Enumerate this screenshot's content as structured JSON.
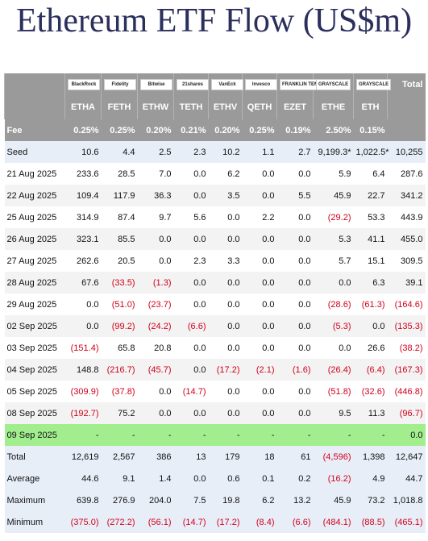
{
  "title": "Ethereum ETF Flow (US$m)",
  "total_header": "Total",
  "fee_label": "Fee",
  "columns": [
    {
      "logo": "BlackRock",
      "ticker": "ETHA",
      "fee": "0.25%"
    },
    {
      "logo": "Fidelity",
      "ticker": "FETH",
      "fee": "0.25%"
    },
    {
      "logo": "Bitwise",
      "ticker": "ETHW",
      "fee": "0.20%"
    },
    {
      "logo": "21shares",
      "ticker": "TETH",
      "fee": "0.21%"
    },
    {
      "logo": "VanEck",
      "ticker": "ETHV",
      "fee": "0.20%"
    },
    {
      "logo": "Invesco",
      "ticker": "QETH",
      "fee": "0.25%"
    },
    {
      "logo": "FRANKLIN TEMPLETON",
      "ticker": "EZET",
      "fee": "0.19%"
    },
    {
      "logo": "GRAYSCALE",
      "ticker": "ETHE",
      "fee": "2.50%"
    },
    {
      "logo": "GRAYSCALE",
      "ticker": "ETH",
      "fee": "0.15%"
    }
  ],
  "rows": [
    {
      "label": "Seed",
      "cells": [
        "10.6",
        "4.4",
        "2.5",
        "2.3",
        "10.2",
        "1.1",
        "2.7",
        "9,199.3*",
        "1,022.5*",
        "10,255"
      ]
    },
    {
      "label": "21 Aug 2025",
      "cells": [
        "233.6",
        "28.5",
        "7.0",
        "0.0",
        "6.2",
        "0.0",
        "0.0",
        "5.9",
        "6.4",
        "287.6"
      ]
    },
    {
      "label": "22 Aug 2025",
      "cells": [
        "109.4",
        "117.9",
        "36.3",
        "0.0",
        "3.5",
        "0.0",
        "5.5",
        "45.9",
        "22.7",
        "341.2"
      ]
    },
    {
      "label": "25 Aug 2025",
      "cells": [
        "314.9",
        "87.4",
        "9.7",
        "5.6",
        "0.0",
        "2.2",
        "0.0",
        "(29.2)",
        "53.3",
        "443.9"
      ]
    },
    {
      "label": "26 Aug 2025",
      "cells": [
        "323.1",
        "85.5",
        "0.0",
        "0.0",
        "0.0",
        "0.0",
        "0.0",
        "5.3",
        "41.1",
        "455.0"
      ]
    },
    {
      "label": "27 Aug 2025",
      "cells": [
        "262.6",
        "20.5",
        "0.0",
        "2.3",
        "3.3",
        "0.0",
        "0.0",
        "5.7",
        "15.1",
        "309.5"
      ]
    },
    {
      "label": "28 Aug 2025",
      "cells": [
        "67.6",
        "(33.5)",
        "(1.3)",
        "0.0",
        "0.0",
        "0.0",
        "0.0",
        "0.0",
        "6.3",
        "39.1"
      ]
    },
    {
      "label": "29 Aug 2025",
      "cells": [
        "0.0",
        "(51.0)",
        "(23.7)",
        "0.0",
        "0.0",
        "0.0",
        "0.0",
        "(28.6)",
        "(61.3)",
        "(164.6)"
      ]
    },
    {
      "label": "02 Sep 2025",
      "cells": [
        "0.0",
        "(99.2)",
        "(24.2)",
        "(6.6)",
        "0.0",
        "0.0",
        "0.0",
        "(5.3)",
        "0.0",
        "(135.3)"
      ]
    },
    {
      "label": "03 Sep 2025",
      "cells": [
        "(151.4)",
        "65.8",
        "20.8",
        "0.0",
        "0.0",
        "0.0",
        "0.0",
        "0.0",
        "26.6",
        "(38.2)"
      ]
    },
    {
      "label": "04 Sep 2025",
      "cells": [
        "148.8",
        "(216.7)",
        "(45.7)",
        "0.0",
        "(17.2)",
        "(2.1)",
        "(1.6)",
        "(26.4)",
        "(6.4)",
        "(167.3)"
      ]
    },
    {
      "label": "05 Sep 2025",
      "cells": [
        "(309.9)",
        "(37.8)",
        "0.0",
        "(14.7)",
        "0.0",
        "0.0",
        "0.0",
        "(51.8)",
        "(32.6)",
        "(446.8)"
      ]
    },
    {
      "label": "08 Sep 2025",
      "cells": [
        "(192.7)",
        "75.2",
        "0.0",
        "0.0",
        "0.0",
        "0.0",
        "0.0",
        "9.5",
        "11.3",
        "(96.7)"
      ]
    },
    {
      "label": "09 Sep 2025",
      "cells": [
        "-",
        "-",
        "-",
        "-",
        "-",
        "-",
        "-",
        "-",
        "-",
        "0.0"
      ]
    },
    {
      "label": "Total",
      "cells": [
        "12,619",
        "2,567",
        "386",
        "13",
        "179",
        "18",
        "61",
        "(4,596)",
        "1,398",
        "12,647"
      ]
    },
    {
      "label": "Average",
      "cells": [
        "44.6",
        "9.1",
        "1.4",
        "0.0",
        "0.6",
        "0.1",
        "0.2",
        "(16.2)",
        "4.9",
        "44.7"
      ]
    },
    {
      "label": "Maximum",
      "cells": [
        "639.8",
        "276.9",
        "204.0",
        "7.5",
        "19.8",
        "6.2",
        "13.2",
        "45.9",
        "73.2",
        "1,018.8"
      ]
    },
    {
      "label": "Minimum",
      "cells": [
        "(375.0)",
        "(272.2)",
        "(56.1)",
        "(14.7)",
        "(17.2)",
        "(8.4)",
        "(6.6)",
        "(484.1)",
        "(88.5)",
        "(465.1)"
      ]
    }
  ]
}
